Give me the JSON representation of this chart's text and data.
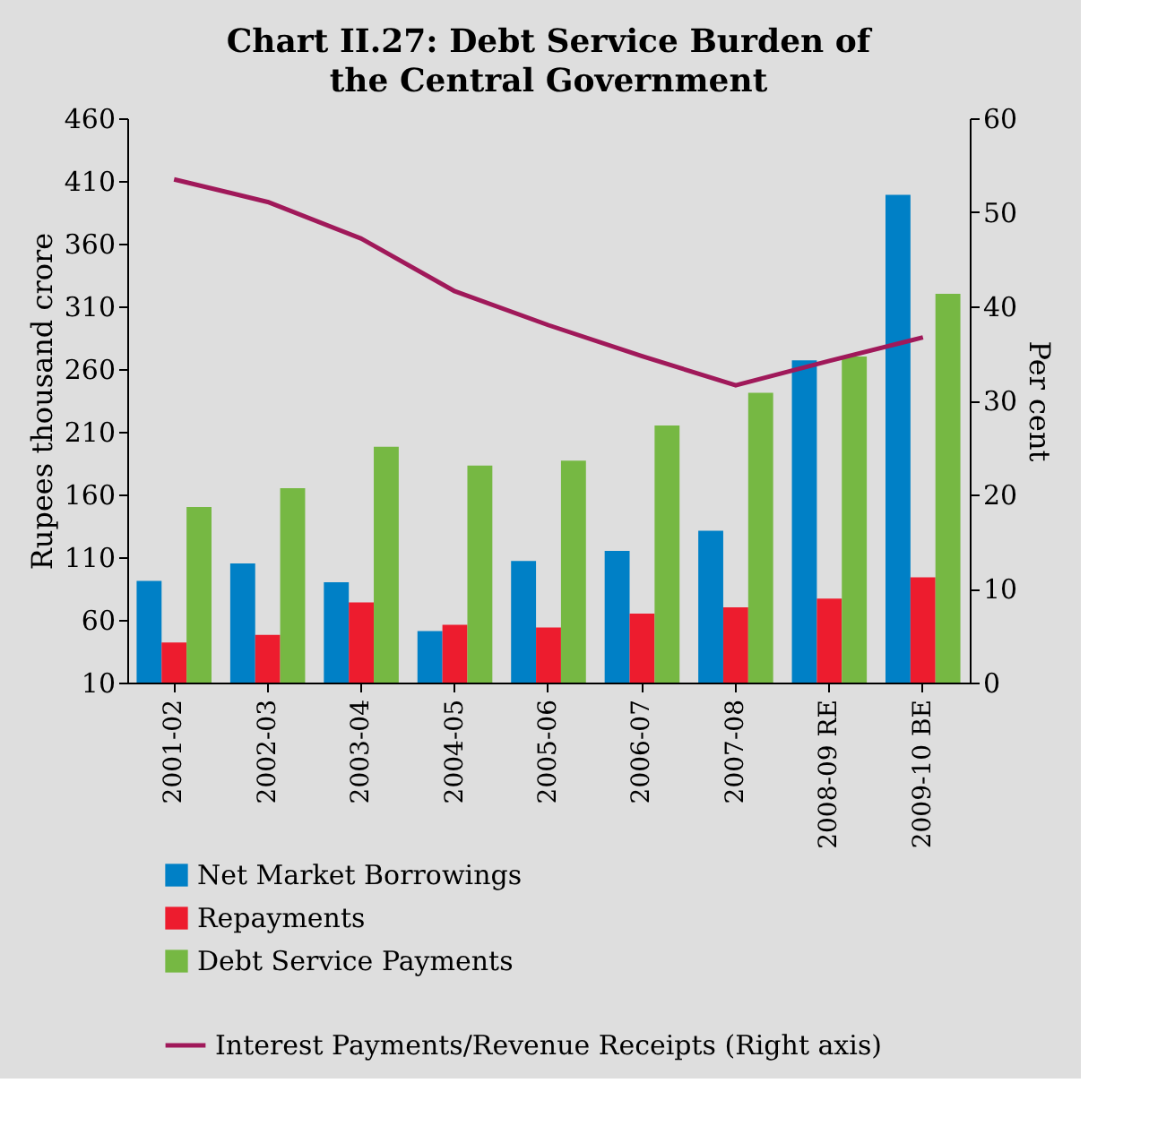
{
  "chart_data": {
    "type": "bar",
    "title": "Chart II.27: Debt Service Burden of the Central Government",
    "categories": [
      "2001-02",
      "2002-03",
      "2003-04",
      "2004-05",
      "2005-06",
      "2006-07",
      "2007-08",
      "2008-09 RE",
      "2009-10 BE"
    ],
    "series": [
      {
        "name": "Net Market Borrowings",
        "color": "#0080c6",
        "values": [
          91,
          105,
          90,
          51,
          107,
          115,
          131,
          267,
          399
        ]
      },
      {
        "name": "Repayments",
        "color": "#ed1c2e",
        "values": [
          42,
          48,
          74,
          56,
          54,
          65,
          70,
          77,
          94
        ]
      },
      {
        "name": "Debt Service Payments",
        "color": "#76b843",
        "values": [
          150,
          165,
          198,
          183,
          187,
          215,
          241,
          270,
          320
        ]
      },
      {
        "name": "Interest Payments/Revenue Receipts (Right axis)",
        "type": "line",
        "axis": "y2",
        "color": "#a0195a",
        "values": [
          53.5,
          51.1,
          47.2,
          41.6,
          38.0,
          34.7,
          31.6,
          34.2,
          36.7
        ]
      }
    ],
    "ylabel": "Rupees  thousand crore",
    "y2label": "Per cent",
    "ylim": [
      10,
      460
    ],
    "yticks": [
      10,
      60,
      110,
      160,
      210,
      260,
      310,
      360,
      410,
      460
    ],
    "y2lim": [
      0,
      60
    ],
    "y2ticks": [
      0,
      10,
      20,
      30,
      40,
      50,
      60
    ],
    "legend": "bottom"
  }
}
